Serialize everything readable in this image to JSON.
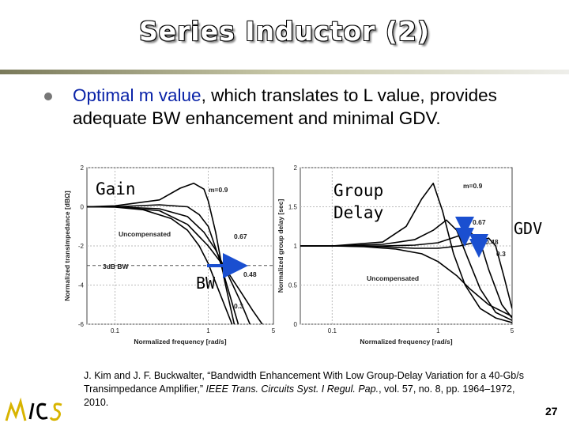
{
  "slide": {
    "title": "Series Inductor (2)",
    "bullet": {
      "part1": "Optimal m value",
      "part2": ", which translates to L value, provides adequate BW enhancement and minimal GDV."
    },
    "labels": {
      "gain": "Gain",
      "group_delay": "Group\nDelay",
      "bw": "BW",
      "gdv": "GDV"
    },
    "reference": {
      "part1": "J. Kim and J. F. Buckwalter, “Bandwidth Enhancement With Low Group-Delay Variation for a 40-Gb/s Transimpedance Amplifier,” ",
      "journal": "IEEE Trans. Circuits Syst. I Regul. Pap.",
      "part2": ", vol. 57, no. 8, pp. 1964–1972, 2010."
    },
    "page_number": "27",
    "colors": {
      "bullet_highlight": "#0a23a8",
      "arrow": "#1a4fd0",
      "title_fill": "#ffffff"
    }
  },
  "chart_data": [
    {
      "type": "line",
      "title": "",
      "xlabel": "Normalized frequency [rad/s]",
      "ylabel": "Normalized transimpedance [dBΩ]",
      "xscale": "log",
      "xlim": [
        0.05,
        5
      ],
      "ylim": [
        -6,
        2
      ],
      "xticks": [
        "0.1",
        "1",
        "5"
      ],
      "yticks": [
        "2",
        "0",
        "-2",
        "-4",
        "-6"
      ],
      "annotations": [
        "m=0.9",
        "Uncompensated",
        "0.67",
        "3dB BW",
        "0.48",
        "0.3"
      ],
      "series": [
        {
          "label": "m=0.9",
          "x": [
            0.05,
            0.1,
            0.3,
            0.5,
            0.7,
            0.9,
            1.0,
            1.2,
            1.5,
            1.9
          ],
          "y": [
            0,
            0.05,
            0.35,
            0.95,
            1.2,
            0.9,
            0.3,
            -1.3,
            -3.8,
            -6
          ]
        },
        {
          "label": "0.67",
          "x": [
            0.05,
            0.1,
            0.3,
            0.6,
            0.8,
            1.0,
            1.3,
            1.7,
            2.1
          ],
          "y": [
            0,
            0,
            0.1,
            0,
            -0.4,
            -1.0,
            -2.6,
            -4.5,
            -6
          ]
        },
        {
          "label": "0.48",
          "x": [
            0.05,
            0.1,
            0.3,
            0.6,
            0.9,
            1.2,
            1.6,
            2.2,
            2.8
          ],
          "y": [
            0,
            0,
            -0.1,
            -0.5,
            -1.3,
            -2.2,
            -3.4,
            -4.8,
            -6
          ]
        },
        {
          "label": "0.3",
          "x": [
            0.05,
            0.1,
            0.3,
            0.6,
            1.0,
            1.5,
            2.2,
            3.0,
            3.8
          ],
          "y": [
            0,
            0,
            -0.2,
            -0.9,
            -2.0,
            -3.1,
            -4.3,
            -5.3,
            -6
          ]
        },
        {
          "label": "Uncompensated",
          "x": [
            0.05,
            0.1,
            0.2,
            0.4,
            0.6,
            0.8,
            1.0,
            1.3,
            1.8
          ],
          "y": [
            0,
            -0.02,
            -0.15,
            -0.6,
            -1.2,
            -2.0,
            -2.9,
            -4.3,
            -6
          ]
        }
      ]
    },
    {
      "type": "line",
      "title": "",
      "xlabel": "Normalized frequency [rad/s]",
      "ylabel": "Normalized group delay [sec]",
      "xscale": "log",
      "xlim": [
        0.05,
        5
      ],
      "ylim": [
        0,
        2
      ],
      "xticks": [
        "0.1",
        "1",
        "5"
      ],
      "yticks": [
        "2",
        "1.5",
        "1",
        "0.5",
        "0"
      ],
      "annotations": [
        "m=0.9",
        "0.67",
        "0.48",
        "0.3",
        "Uncompensated"
      ],
      "series": [
        {
          "label": "m=0.9",
          "x": [
            0.05,
            0.1,
            0.3,
            0.5,
            0.7,
            0.9,
            1.1,
            1.4,
            1.8,
            2.5,
            3.5,
            5
          ],
          "y": [
            1,
            1,
            1.05,
            1.25,
            1.6,
            1.8,
            1.45,
            0.9,
            0.5,
            0.2,
            0.08,
            0.02
          ]
        },
        {
          "label": "0.67",
          "x": [
            0.05,
            0.1,
            0.3,
            0.6,
            0.9,
            1.2,
            1.5,
            1.9,
            2.5,
            3.5,
            5
          ],
          "y": [
            1,
            1,
            1.02,
            1.08,
            1.2,
            1.33,
            1.2,
            0.85,
            0.45,
            0.15,
            0.05
          ]
        },
        {
          "label": "0.48",
          "x": [
            0.05,
            0.1,
            0.3,
            0.6,
            1.0,
            1.5,
            2.0,
            2.5,
            3.0,
            4.0,
            5
          ],
          "y": [
            1,
            1,
            1.0,
            1.01,
            1.04,
            1.12,
            1.18,
            1.05,
            0.7,
            0.25,
            0.08
          ]
        },
        {
          "label": "0.3",
          "x": [
            0.05,
            0.1,
            0.3,
            0.6,
            1.0,
            1.6,
            2.3,
            3.0,
            3.5,
            4.2,
            5
          ],
          "y": [
            1,
            1,
            0.99,
            0.97,
            0.97,
            1.0,
            1.05,
            1.1,
            1.0,
            0.6,
            0.2
          ]
        },
        {
          "label": "Uncompensated",
          "x": [
            0.05,
            0.1,
            0.2,
            0.4,
            0.7,
            1.0,
            1.5,
            2.0,
            3.0,
            5
          ],
          "y": [
            1,
            1,
            0.99,
            0.96,
            0.9,
            0.8,
            0.62,
            0.45,
            0.25,
            0.1
          ]
        }
      ]
    }
  ]
}
